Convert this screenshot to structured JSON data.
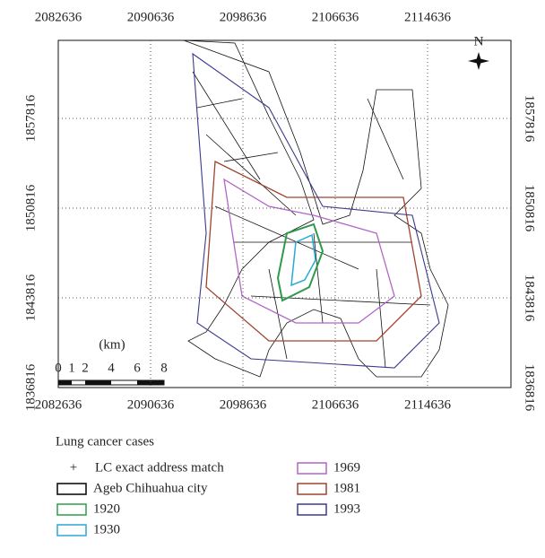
{
  "map": {
    "xticks": [
      2082636,
      2090636,
      2098636,
      2106636,
      2114636
    ],
    "yticks": [
      1857816,
      1850816,
      1843816,
      1836816
    ],
    "north": "N",
    "scale_bar": {
      "unit": "(km)",
      "labels": [
        "0",
        "1",
        "2",
        "4",
        "6",
        "8"
      ]
    }
  },
  "legend": {
    "title": "Lung cancer cases",
    "items": [
      {
        "symbol": "+",
        "label": "LC exact address match"
      },
      {
        "label": "Ageb Chihuahua city",
        "color": "#000000"
      },
      {
        "label": "1920",
        "color": "#2e9b4a"
      },
      {
        "label": "1930",
        "color": "#2aa9d6"
      },
      {
        "label": "1969",
        "color": "#b265c7"
      },
      {
        "label": "1981",
        "color": "#a0432f"
      },
      {
        "label": "1993",
        "color": "#3b3a8c"
      }
    ]
  }
}
